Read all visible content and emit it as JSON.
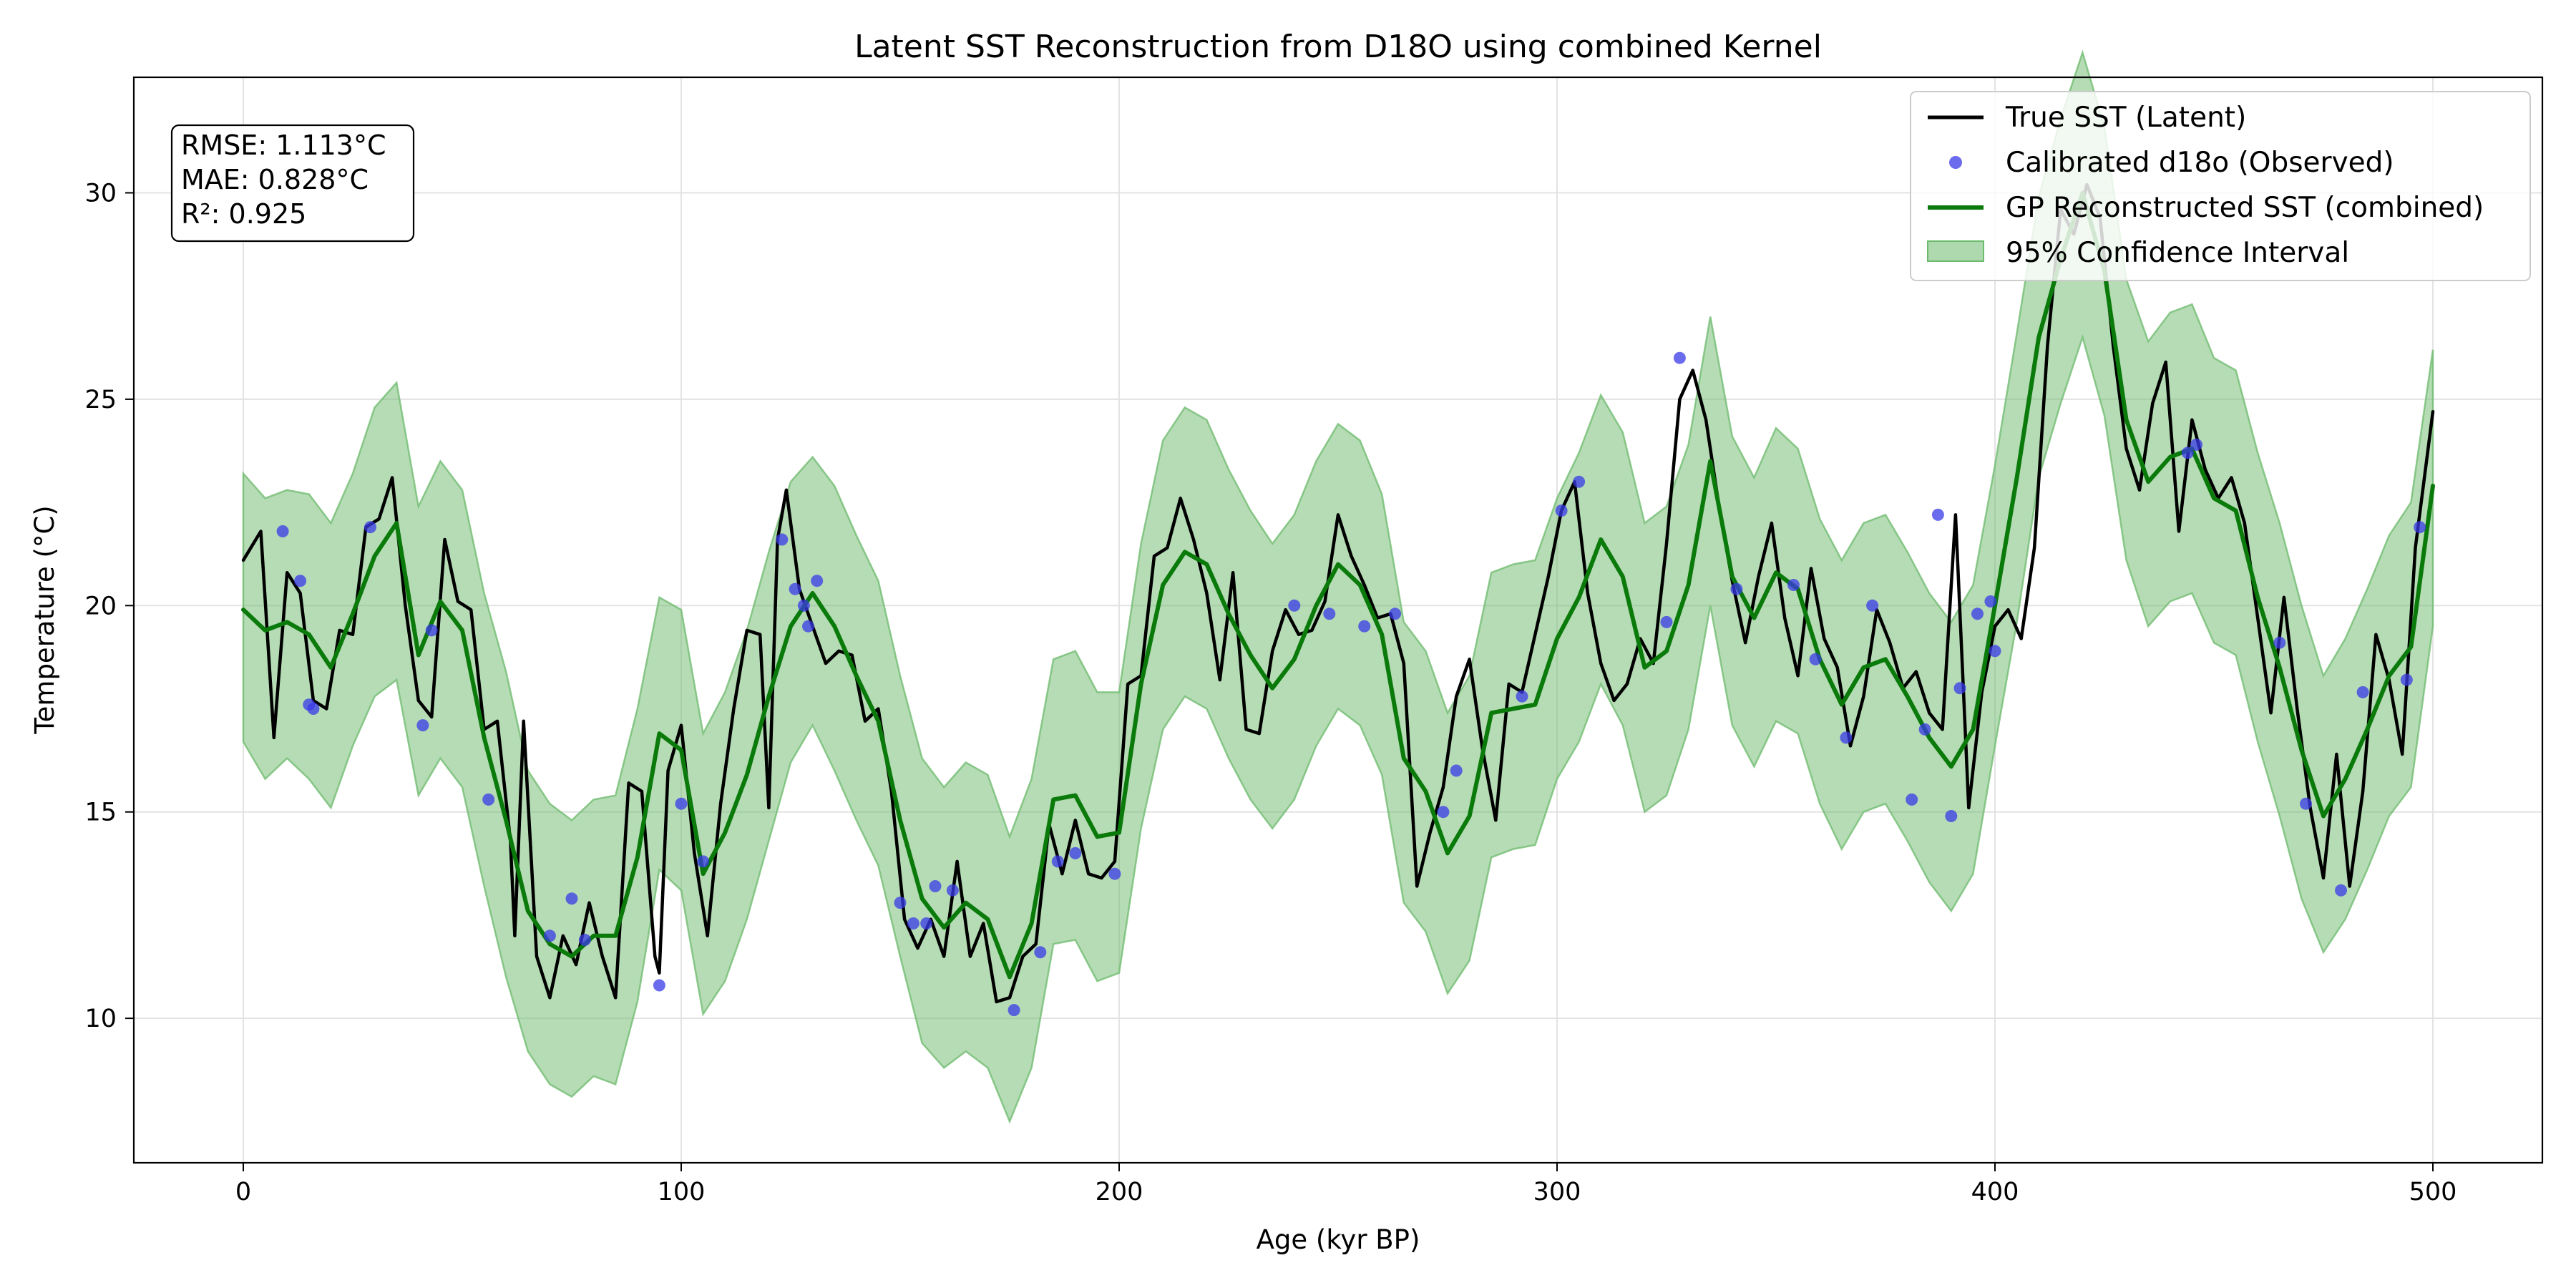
{
  "chart_data": {
    "type": "line",
    "title": "Latent SST Reconstruction from D18O using combined Kernel",
    "xlabel": "Age (kyr BP)",
    "ylabel": "Temperature (°C)",
    "xlim": [
      -25,
      525
    ],
    "ylim": [
      6.5,
      32.8
    ],
    "xticks": [
      0,
      100,
      200,
      300,
      400,
      500
    ],
    "yticks": [
      10,
      15,
      20,
      25,
      30
    ],
    "grid": true,
    "legend_position": "top-right",
    "stats": [
      "RMSE: 1.113°C",
      "MAE: 0.828°C",
      "R²: 0.925"
    ],
    "series": [
      {
        "name": "True SST (Latent)",
        "kind": "line",
        "color": "#000000",
        "x": [
          0,
          4,
          7,
          10,
          13,
          16,
          19,
          22,
          25,
          28,
          31,
          34,
          37,
          40,
          43,
          46,
          49,
          52,
          55,
          58,
          61,
          62,
          64,
          67,
          70,
          73,
          76,
          79,
          82,
          85,
          88,
          91,
          94,
          95,
          97,
          100,
          103,
          106,
          109,
          112,
          115,
          118,
          120,
          122,
          124,
          127,
          130,
          133,
          136,
          139,
          142,
          145,
          148,
          151,
          154,
          157,
          160,
          163,
          166,
          169,
          172,
          175,
          178,
          181,
          184,
          187,
          190,
          193,
          196,
          199,
          202,
          205,
          208,
          211,
          214,
          217,
          220,
          223,
          226,
          229,
          232,
          235,
          238,
          241,
          244,
          247,
          250,
          253,
          256,
          259,
          262,
          265,
          268,
          271,
          274,
          277,
          280,
          283,
          286,
          289,
          292,
          295,
          298,
          301,
          304,
          307,
          310,
          313,
          316,
          319,
          322,
          325,
          328,
          331,
          334,
          337,
          340,
          343,
          346,
          349,
          352,
          355,
          358,
          361,
          364,
          367,
          370,
          373,
          376,
          379,
          382,
          385,
          388,
          391,
          394,
          397,
          400,
          403,
          406,
          409,
          412,
          415,
          418,
          421,
          424,
          427,
          430,
          433,
          436,
          439,
          442,
          445,
          448,
          451,
          454,
          457,
          460,
          463,
          466,
          469,
          472,
          475,
          478,
          481,
          484,
          487,
          490,
          493,
          496,
          500
        ],
        "y": [
          21.1,
          21.8,
          16.8,
          20.8,
          20.3,
          17.7,
          17.5,
          19.4,
          19.3,
          21.9,
          22.1,
          23.1,
          20.0,
          17.7,
          17.3,
          21.6,
          20.1,
          19.9,
          17.0,
          17.2,
          14.3,
          12.0,
          17.2,
          11.5,
          10.5,
          12.0,
          11.3,
          12.8,
          11.5,
          10.5,
          15.7,
          15.5,
          11.5,
          11.1,
          16.0,
          17.1,
          14.0,
          12.0,
          15.2,
          17.5,
          19.4,
          19.3,
          15.1,
          21.6,
          22.8,
          20.4,
          19.5,
          18.6,
          18.9,
          18.8,
          17.2,
          17.5,
          15.5,
          12.4,
          11.7,
          12.4,
          11.5,
          13.8,
          11.5,
          12.3,
          10.4,
          10.5,
          11.5,
          11.8,
          14.7,
          13.5,
          14.8,
          13.5,
          13.4,
          13.8,
          18.1,
          18.3,
          21.2,
          21.4,
          22.6,
          21.6,
          20.3,
          18.2,
          20.8,
          17.0,
          16.9,
          18.9,
          19.9,
          19.3,
          19.4,
          20.1,
          22.2,
          21.2,
          20.5,
          19.7,
          19.8,
          18.6,
          13.2,
          14.5,
          15.6,
          17.8,
          18.7,
          16.5,
          14.8,
          18.1,
          17.9,
          19.3,
          20.7,
          22.3,
          23.0,
          20.3,
          18.6,
          17.7,
          18.1,
          19.2,
          18.6,
          21.5,
          25.0,
          25.7,
          24.5,
          22.4,
          20.6,
          19.1,
          20.7,
          22.0,
          19.7,
          18.3,
          20.9,
          19.2,
          18.5,
          16.6,
          17.8,
          19.9,
          19.1,
          18.0,
          18.4,
          17.4,
          17.0,
          22.2,
          15.1,
          17.9,
          19.5,
          19.9,
          19.2,
          21.4,
          26.3,
          29.6,
          29.0,
          30.2,
          29.4,
          26.3,
          23.8,
          22.8,
          24.9,
          25.9,
          21.8,
          24.5,
          23.3,
          22.6,
          23.1,
          22.0,
          19.7,
          17.4,
          20.2,
          17.5,
          15.1,
          13.4,
          16.4,
          13.2,
          15.5,
          19.3,
          18.2,
          16.4,
          21.4,
          24.7
        ]
      },
      {
        "name": "Calibrated d18o (Observed)",
        "kind": "scatter",
        "color": "#3a3ae8",
        "x": [
          9,
          13,
          15,
          16,
          29,
          41,
          43,
          56,
          70,
          75,
          78,
          95,
          100,
          105,
          123,
          126,
          128,
          129,
          131,
          150,
          153,
          156,
          158,
          162,
          176,
          182,
          186,
          190,
          199,
          240,
          248,
          256,
          263,
          274,
          277,
          292,
          301,
          305,
          325,
          328,
          341,
          354,
          359,
          366,
          372,
          381,
          384,
          387,
          390,
          392,
          396,
          399,
          400,
          444,
          446,
          465,
          471,
          479,
          484,
          494,
          497
        ],
        "y": [
          21.8,
          20.6,
          17.6,
          17.5,
          21.9,
          17.1,
          19.4,
          15.3,
          12.0,
          12.9,
          11.9,
          10.8,
          15.2,
          13.8,
          21.6,
          20.4,
          20.0,
          19.5,
          20.6,
          12.8,
          12.3,
          12.3,
          13.2,
          13.1,
          10.2,
          11.6,
          13.8,
          14.0,
          13.5,
          20.0,
          19.8,
          19.5,
          19.8,
          15.0,
          16.0,
          17.8,
          22.3,
          23.0,
          19.6,
          26.0,
          20.4,
          20.5,
          18.7,
          16.8,
          20.0,
          15.3,
          17.0,
          22.2,
          14.9,
          18.0,
          19.8,
          20.1,
          18.9,
          23.7,
          23.9,
          19.1,
          15.2,
          13.1,
          17.9,
          18.2,
          21.9
        ]
      },
      {
        "name": "GP Reconstructed SST (combined)",
        "kind": "line",
        "color": "#0a7a0a",
        "x": [
          0,
          5,
          10,
          15,
          20,
          25,
          30,
          35,
          40,
          45,
          50,
          55,
          60,
          65,
          70,
          75,
          80,
          85,
          90,
          95,
          100,
          105,
          110,
          115,
          120,
          125,
          130,
          135,
          140,
          145,
          150,
          155,
          160,
          165,
          170,
          175,
          180,
          185,
          190,
          195,
          200,
          205,
          210,
          215,
          220,
          225,
          230,
          235,
          240,
          245,
          250,
          255,
          260,
          265,
          270,
          275,
          280,
          285,
          290,
          295,
          300,
          305,
          310,
          315,
          320,
          325,
          330,
          335,
          340,
          345,
          350,
          355,
          360,
          365,
          370,
          375,
          380,
          385,
          390,
          395,
          400,
          405,
          410,
          415,
          420,
          425,
          430,
          435,
          440,
          445,
          450,
          455,
          460,
          465,
          470,
          475,
          480,
          485,
          490,
          495,
          500
        ],
        "y": [
          19.9,
          19.4,
          19.6,
          19.3,
          18.5,
          19.8,
          21.2,
          22.0,
          18.8,
          20.1,
          19.4,
          16.8,
          14.8,
          12.6,
          11.8,
          11.5,
          12.0,
          12.0,
          13.9,
          16.9,
          16.5,
          13.5,
          14.5,
          15.9,
          17.8,
          19.5,
          20.3,
          19.5,
          18.3,
          17.2,
          14.8,
          12.9,
          12.2,
          12.8,
          12.4,
          11.0,
          12.3,
          15.3,
          15.4,
          14.4,
          14.5,
          18.1,
          20.5,
          21.3,
          21.0,
          19.8,
          18.8,
          18.0,
          18.7,
          20.0,
          21.0,
          20.5,
          19.3,
          16.3,
          15.5,
          14.0,
          14.9,
          17.4,
          17.5,
          17.6,
          19.2,
          20.2,
          21.6,
          20.7,
          18.5,
          18.9,
          20.5,
          23.5,
          20.7,
          19.7,
          20.8,
          20.4,
          18.7,
          17.6,
          18.5,
          18.7,
          17.8,
          16.8,
          16.1,
          17.0,
          20.0,
          23.1,
          26.5,
          28.4,
          30.0,
          28.1,
          24.5,
          23.0,
          23.6,
          23.8,
          22.6,
          22.3,
          20.2,
          18.5,
          16.5,
          14.9,
          15.8,
          17.0,
          18.3,
          19.0,
          22.9
        ]
      },
      {
        "name": "95% Confidence Interval",
        "kind": "band",
        "color": "#6cba6c",
        "x": [
          0,
          5,
          10,
          15,
          20,
          25,
          30,
          35,
          40,
          45,
          50,
          55,
          60,
          65,
          70,
          75,
          80,
          85,
          90,
          95,
          100,
          105,
          110,
          115,
          120,
          125,
          130,
          135,
          140,
          145,
          150,
          155,
          160,
          165,
          170,
          175,
          180,
          185,
          190,
          195,
          200,
          205,
          210,
          215,
          220,
          225,
          230,
          235,
          240,
          245,
          250,
          255,
          260,
          265,
          270,
          275,
          280,
          285,
          290,
          295,
          300,
          305,
          310,
          315,
          320,
          325,
          330,
          335,
          340,
          345,
          350,
          355,
          360,
          365,
          370,
          375,
          380,
          385,
          390,
          395,
          400,
          405,
          410,
          415,
          420,
          425,
          430,
          435,
          440,
          445,
          450,
          455,
          460,
          465,
          470,
          475,
          480,
          485,
          490,
          495,
          500
        ],
        "lower": [
          16.7,
          15.8,
          16.3,
          15.8,
          15.1,
          16.6,
          17.8,
          18.2,
          15.4,
          16.3,
          15.6,
          13.2,
          11.0,
          9.2,
          8.4,
          8.1,
          8.6,
          8.4,
          10.4,
          13.6,
          13.1,
          10.1,
          10.9,
          12.4,
          14.3,
          16.2,
          17.1,
          16.0,
          14.8,
          13.7,
          11.5,
          9.4,
          8.8,
          9.2,
          8.8,
          7.5,
          8.8,
          11.8,
          11.9,
          10.9,
          11.1,
          14.6,
          17.0,
          17.8,
          17.5,
          16.3,
          15.3,
          14.6,
          15.3,
          16.6,
          17.5,
          17.1,
          15.9,
          12.8,
          12.1,
          10.6,
          11.4,
          13.9,
          14.1,
          14.2,
          15.8,
          16.7,
          18.1,
          17.1,
          15.0,
          15.4,
          17.0,
          20.0,
          17.1,
          16.1,
          17.2,
          16.9,
          15.2,
          14.1,
          15.0,
          15.2,
          14.3,
          13.3,
          12.6,
          13.5,
          16.6,
          19.6,
          23.1,
          24.9,
          26.5,
          24.6,
          21.1,
          19.5,
          20.1,
          20.3,
          19.1,
          18.8,
          16.7,
          14.9,
          12.9,
          11.6,
          12.4,
          13.6,
          14.9,
          15.6,
          19.5
        ],
        "upper": [
          23.2,
          22.6,
          22.8,
          22.7,
          22.0,
          23.2,
          24.8,
          25.4,
          22.4,
          23.5,
          22.8,
          20.3,
          18.4,
          16.0,
          15.2,
          14.8,
          15.3,
          15.4,
          17.5,
          20.2,
          19.9,
          16.9,
          17.9,
          19.4,
          21.3,
          23.0,
          23.6,
          22.9,
          21.7,
          20.6,
          18.3,
          16.3,
          15.6,
          16.2,
          15.9,
          14.4,
          15.8,
          18.7,
          18.9,
          17.9,
          17.9,
          21.5,
          24.0,
          24.8,
          24.5,
          23.3,
          22.3,
          21.5,
          22.2,
          23.5,
          24.4,
          24.0,
          22.7,
          19.6,
          18.9,
          17.4,
          18.3,
          20.8,
          21.0,
          21.1,
          22.6,
          23.7,
          25.1,
          24.2,
          22.0,
          22.4,
          23.9,
          27.0,
          24.1,
          23.1,
          24.3,
          23.8,
          22.1,
          21.1,
          22.0,
          22.2,
          21.3,
          20.3,
          19.6,
          20.5,
          23.4,
          26.6,
          29.9,
          31.8,
          33.4,
          31.6,
          27.9,
          26.4,
          27.1,
          27.3,
          26.0,
          25.7,
          23.7,
          22.0,
          20.0,
          18.3,
          19.2,
          20.4,
          21.7,
          22.5,
          26.2
        ]
      }
    ]
  }
}
